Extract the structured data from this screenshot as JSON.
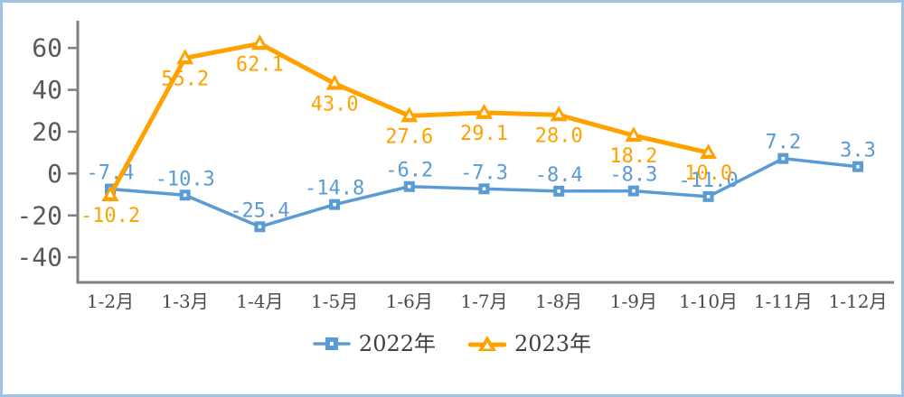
{
  "chart_data": {
    "type": "line",
    "title": "",
    "xlabel": "",
    "ylabel": "",
    "categories": [
      "1-2月",
      "1-3月",
      "1-4月",
      "1-5月",
      "1-6月",
      "1-7月",
      "1-8月",
      "1-9月",
      "1-10月",
      "1-11月",
      "1-12月"
    ],
    "series": [
      {
        "name": "2022年",
        "color": "#5B9BD5",
        "marker": "square",
        "line_width": 3.5,
        "label_position": "above",
        "values": [
          -7.4,
          -10.3,
          -25.4,
          -14.8,
          -6.2,
          -7.3,
          -8.4,
          -8.3,
          -11.0,
          7.2,
          3.3
        ]
      },
      {
        "name": "2023年",
        "color": "#FFA200",
        "marker": "triangle",
        "line_width": 5,
        "label_position": "below",
        "values": [
          -10.2,
          55.2,
          62.1,
          43.0,
          27.6,
          29.1,
          28.0,
          18.2,
          10.0
        ]
      }
    ],
    "yticks": [
      -40,
      -20,
      0,
      20,
      40,
      60
    ],
    "ylim": [
      -52,
      73
    ],
    "grid": false,
    "legend_position": "bottom",
    "axis_color": "#7F7F7F",
    "ytick_label_color": "#595959",
    "xtick_label_color": "#4A4A4A"
  },
  "frame": {
    "border_color": "#9DC3E6",
    "background": "#FFFFFF"
  }
}
